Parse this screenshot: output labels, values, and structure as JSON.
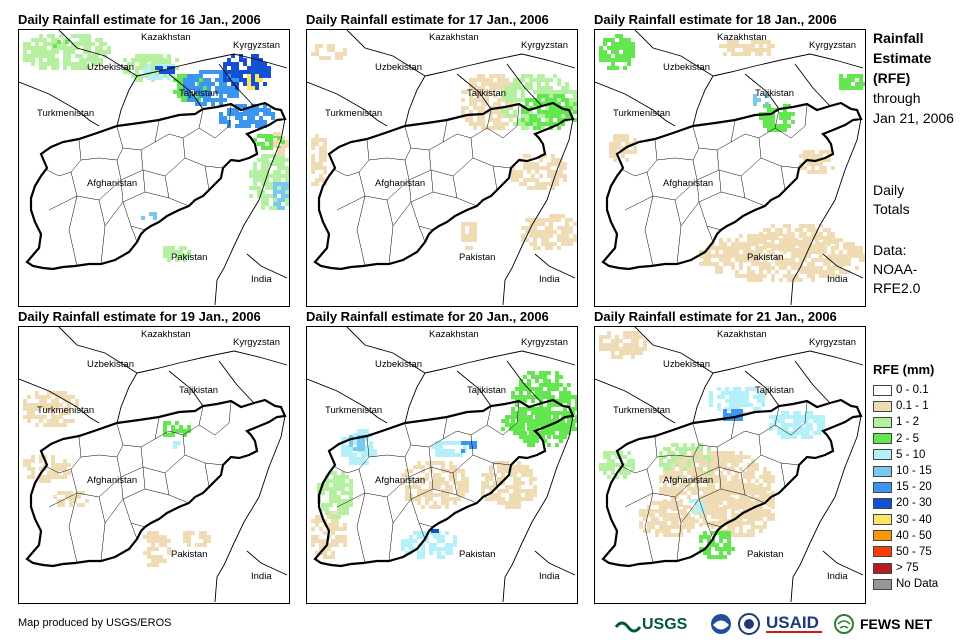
{
  "panels": [
    {
      "title": "Daily Rainfall estimate for 16 Jan., 2006"
    },
    {
      "title": "Daily Rainfall estimate for 17 Jan., 2006"
    },
    {
      "title": "Daily Rainfall estimate for 18 Jan., 2006"
    },
    {
      "title": "Daily Rainfall estimate for 19 Jan., 2006"
    },
    {
      "title": "Daily Rainfall estimate for 20 Jan., 2006"
    },
    {
      "title": "Daily Rainfall estimate for 21 Jan., 2006"
    }
  ],
  "map_labels": {
    "kazakhstan": "Kazakhstan",
    "kyrgyzstan": "Kyrgyzstan",
    "uzbekistan": "Uzbekistan",
    "tajikistan": "Tajikistan",
    "turkmenistan": "Turkmenistan",
    "afghanistan": "Afghanistan",
    "pakistan": "Pakistan",
    "india": "India"
  },
  "side": {
    "title_1": "Rainfall",
    "title_2": "Estimate",
    "title_3": "(RFE)",
    "through": "through",
    "date": "Jan 21, 2006",
    "daily_1": "Daily",
    "daily_2": "Totals",
    "data_1": "Data:",
    "data_2": "NOAA-",
    "data_3": "RFE2.0"
  },
  "legend": {
    "title": "RFE (mm)",
    "items": [
      {
        "label": "0 - 0.1",
        "color": "#ffffff"
      },
      {
        "label": "0.1 - 1",
        "color": "#f0dcb4"
      },
      {
        "label": "1 - 2",
        "color": "#b4f0a0"
      },
      {
        "label": "2 - 5",
        "color": "#64e650"
      },
      {
        "label": "5 - 10",
        "color": "#b4f0fa"
      },
      {
        "label": "10 - 15",
        "color": "#78c8f0"
      },
      {
        "label": "15 - 20",
        "color": "#3c96f0"
      },
      {
        "label": "20 - 30",
        "color": "#1450d2"
      },
      {
        "label": "30 - 40",
        "color": "#fae664"
      },
      {
        "label": "40 - 50",
        "color": "#fa9600"
      },
      {
        "label": "50 - 75",
        "color": "#fa3c00"
      },
      {
        "label": "> 75",
        "color": "#b41e1e"
      },
      {
        "label": "No Data",
        "color": "#969696"
      }
    ]
  },
  "credit": "Map produced by USGS/EROS",
  "logos": {
    "usgs": "USGS",
    "usaid": "USAID",
    "fewsnet": "FEWS NET"
  }
}
